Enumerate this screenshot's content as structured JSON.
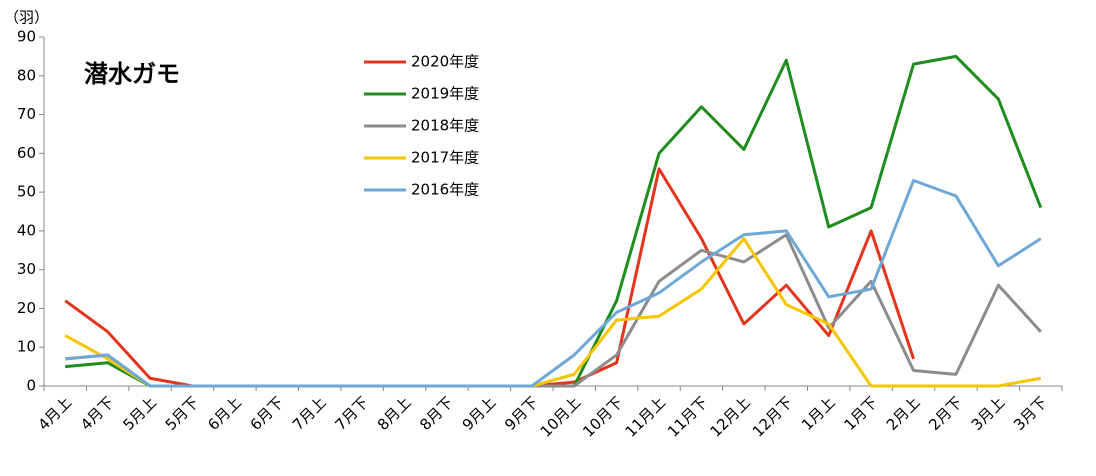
{
  "chart_data": {
    "type": "line",
    "title": "潜水ガモ",
    "y_label": "（羽）",
    "categories": [
      "4月上",
      "4月下",
      "5月上",
      "5月下",
      "6月上",
      "6月下",
      "7月上",
      "7月下",
      "8月上",
      "8月下",
      "9月上",
      "9月下",
      "10月上",
      "10月下",
      "11月上",
      "11月下",
      "12月上",
      "12月下",
      "1月上",
      "1月下",
      "2月上",
      "2月下",
      "3月上",
      "3月下"
    ],
    "series": [
      {
        "name": "2020年度",
        "color": "#e5341c",
        "values": [
          22,
          14,
          2,
          0,
          0,
          0,
          0,
          0,
          0,
          0,
          0,
          0,
          1,
          6,
          56,
          38,
          16,
          26,
          13,
          40,
          7,
          null,
          null,
          null
        ]
      },
      {
        "name": "2019年度",
        "color": "#1e8c1e",
        "values": [
          5,
          6,
          0,
          0,
          0,
          0,
          0,
          0,
          0,
          0,
          0,
          0,
          0,
          22,
          60,
          72,
          61,
          84,
          41,
          46,
          83,
          85,
          74,
          46
        ]
      },
      {
        "name": "2018年度",
        "color": "#8c8c8c",
        "values": [
          7,
          8,
          0,
          0,
          0,
          0,
          0,
          0,
          0,
          0,
          0,
          0,
          0,
          8,
          27,
          35,
          32,
          39,
          15,
          27,
          4,
          3,
          26,
          14
        ]
      },
      {
        "name": "2017年度",
        "color": "#f7c600",
        "values": [
          13,
          7,
          0,
          0,
          0,
          0,
          0,
          0,
          0,
          0,
          0,
          0,
          3,
          17,
          18,
          25,
          38,
          21,
          16,
          0,
          0,
          0,
          0,
          2
        ]
      },
      {
        "name": "2016年度",
        "color": "#6fa8d6",
        "values": [
          7,
          8,
          0,
          0,
          0,
          0,
          0,
          0,
          0,
          0,
          0,
          0,
          8,
          19,
          24,
          32,
          39,
          40,
          23,
          25,
          53,
          49,
          31,
          38
        ]
      }
    ],
    "ylim": [
      0,
      90
    ],
    "yticks": [
      0,
      10,
      20,
      30,
      40,
      50,
      60,
      70,
      80,
      90
    ]
  }
}
